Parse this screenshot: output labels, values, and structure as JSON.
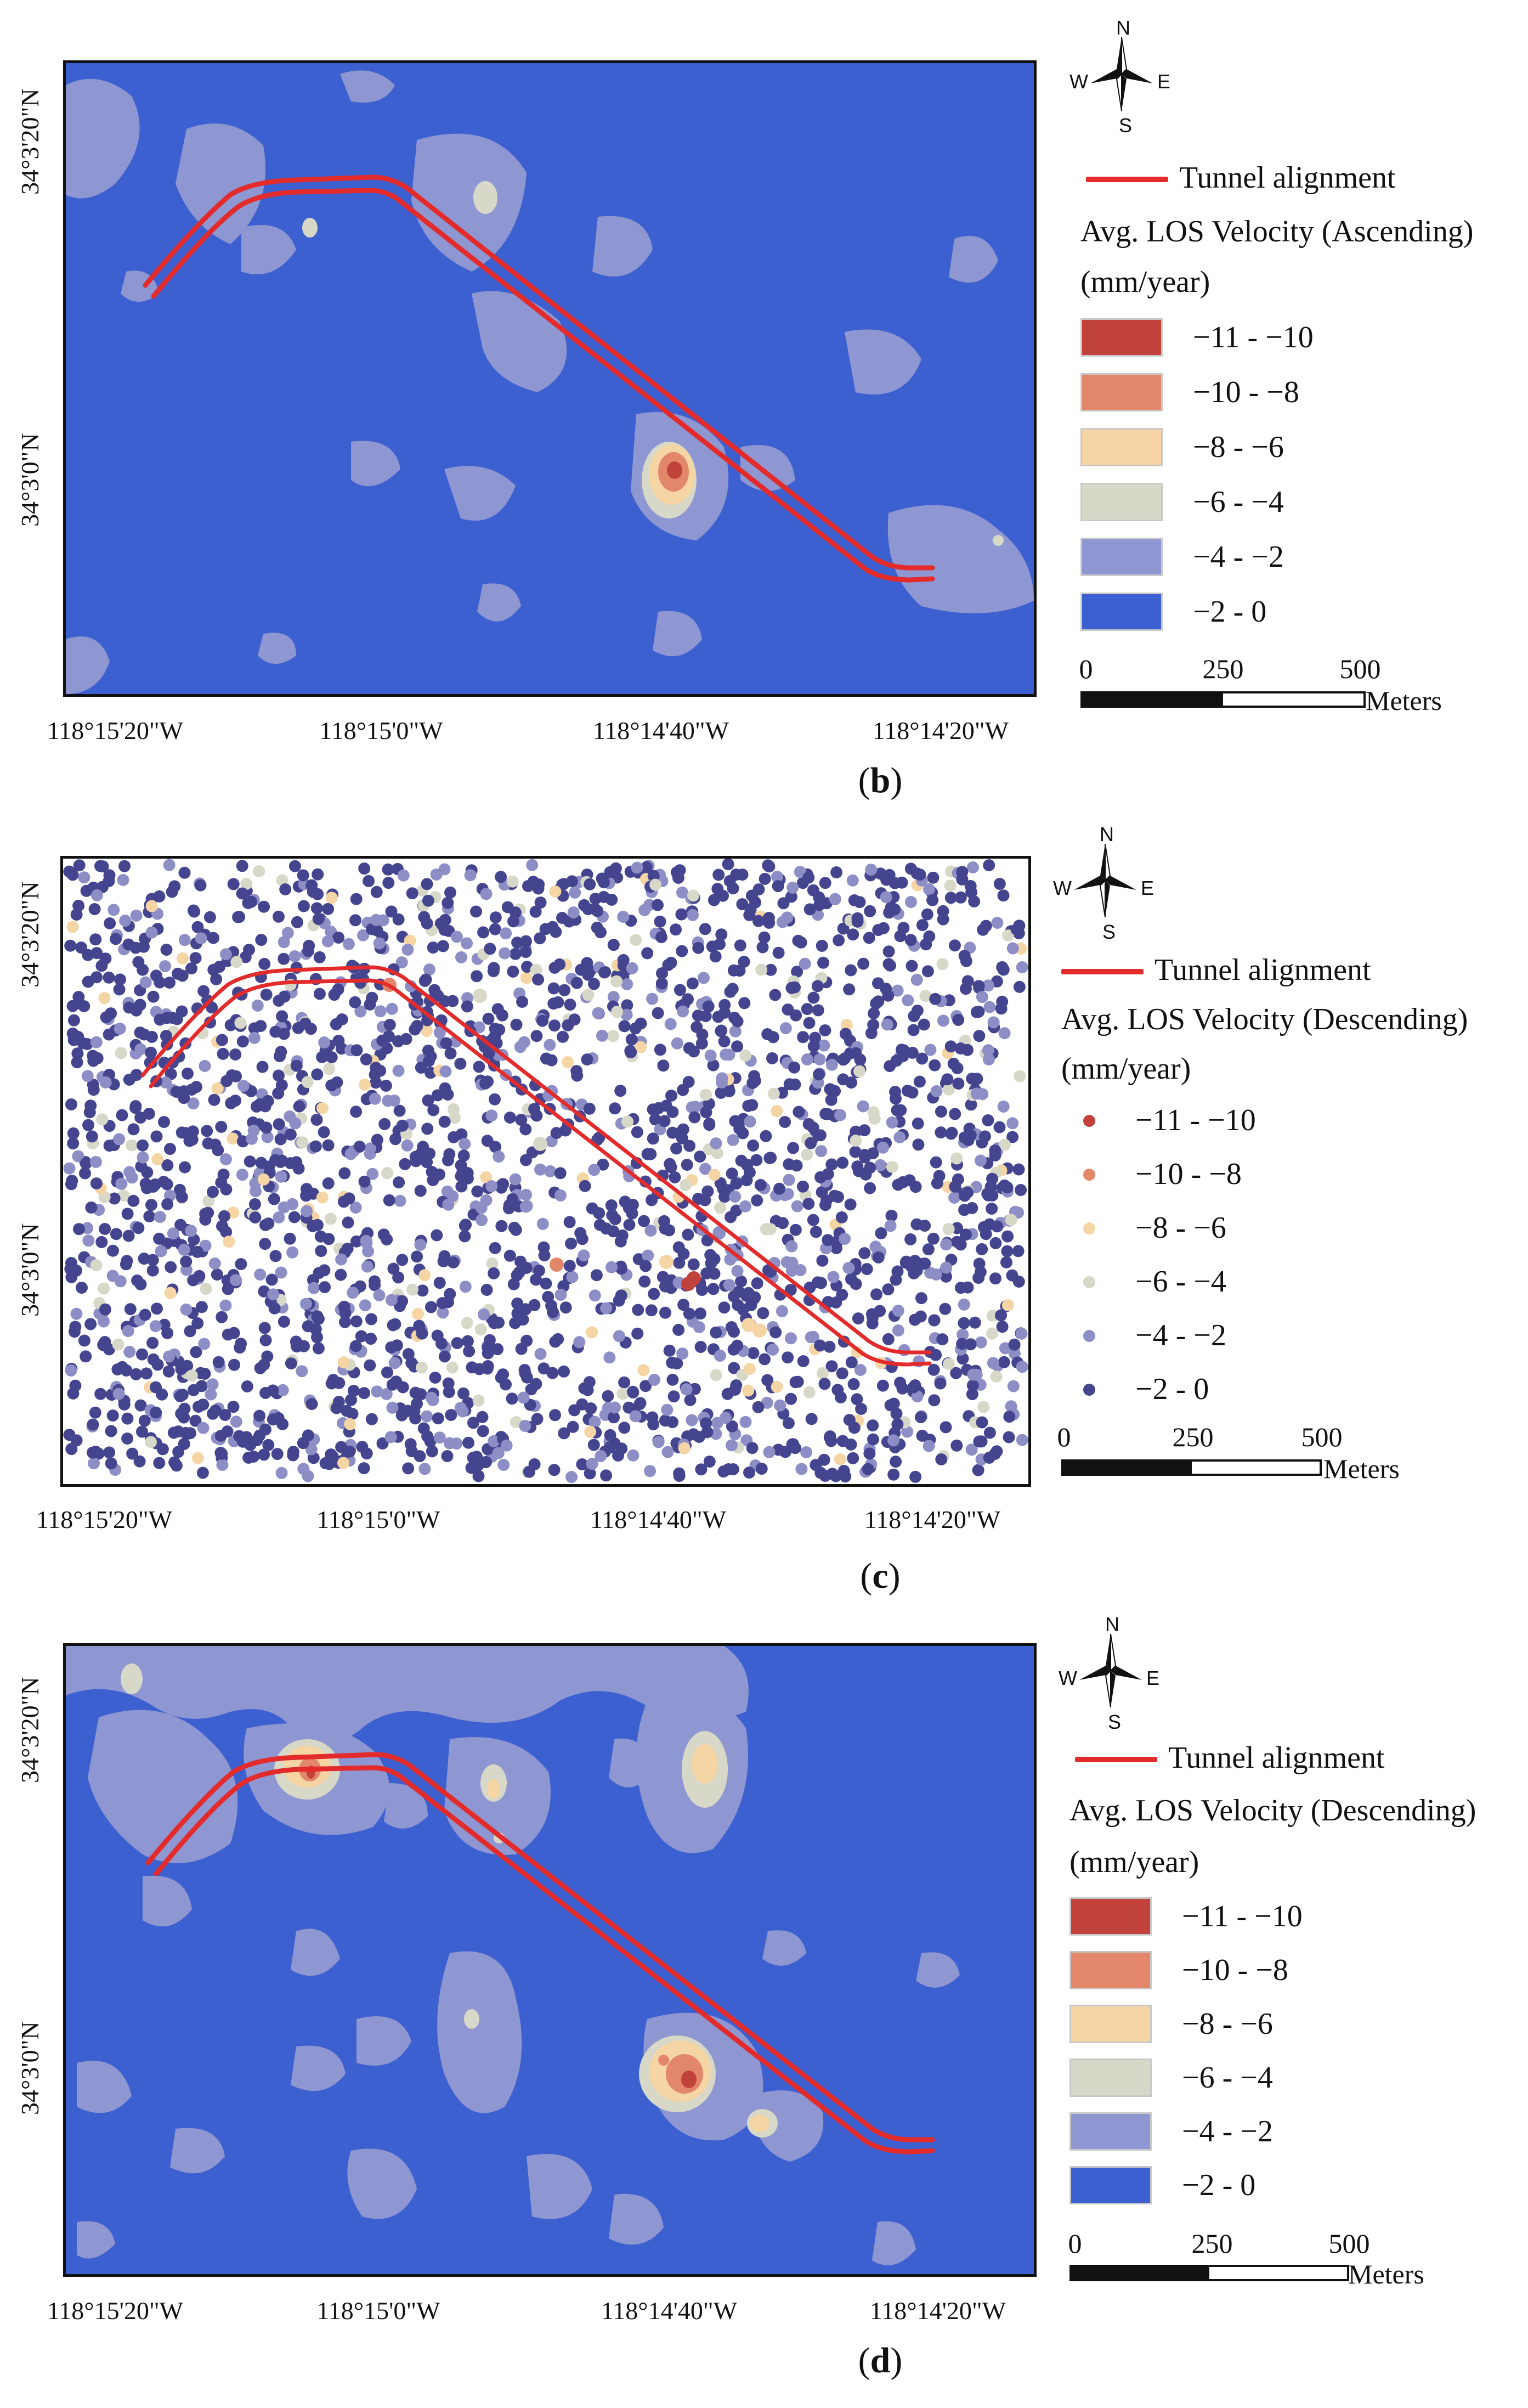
{
  "colors": {
    "background_blue": "#3d60d0",
    "tunnel_red": "#e32b2b",
    "class_colors": [
      "#c0423a",
      "#e2876a",
      "#f6d5a5",
      "#d8d8c8",
      "#8e97d2",
      "#3d60d0"
    ],
    "dot_colors": [
      "#c0423a",
      "#e2876a",
      "#f6d5a5",
      "#d8d8c8",
      "#8e8ec6",
      "#45458f"
    ]
  },
  "coordinates": {
    "lon_ticks": [
      "118°15'20\"W",
      "118°15'0\"W",
      "118°14'40\"W",
      "118°14'20\"W"
    ],
    "lat_ticks": [
      "34°3'20\"N",
      "34°3'0\"N"
    ]
  },
  "classes": [
    "−11 - −10",
    "−10 - −8",
    "−8 - −6",
    "−6 - −4",
    "−4 - −2",
    "−2 - 0"
  ],
  "compass": {
    "n": "N",
    "s": "S",
    "e": "E",
    "w": "W",
    "icon": "north-arrow-compass-icon"
  },
  "scale": {
    "labels": [
      "0",
      "250",
      "500"
    ],
    "unit": "Meters"
  },
  "panels": {
    "b": {
      "caption_letter": "b",
      "legend_line": "Tunnel alignment",
      "legend_title": "Avg. LOS Velocity (Ascending)",
      "legend_units": "(mm/year)",
      "style": "contour"
    },
    "c": {
      "caption_letter": "c",
      "legend_line": "Tunnel alignment",
      "legend_title": "Avg. LOS Velocity (Descending)",
      "legend_units": "(mm/year)",
      "style": "points"
    },
    "d": {
      "caption_letter": "d",
      "legend_line": "Tunnel alignment",
      "legend_title": "Avg. LOS Velocity (Descending)",
      "legend_units": "(mm/year)",
      "style": "contour"
    }
  }
}
